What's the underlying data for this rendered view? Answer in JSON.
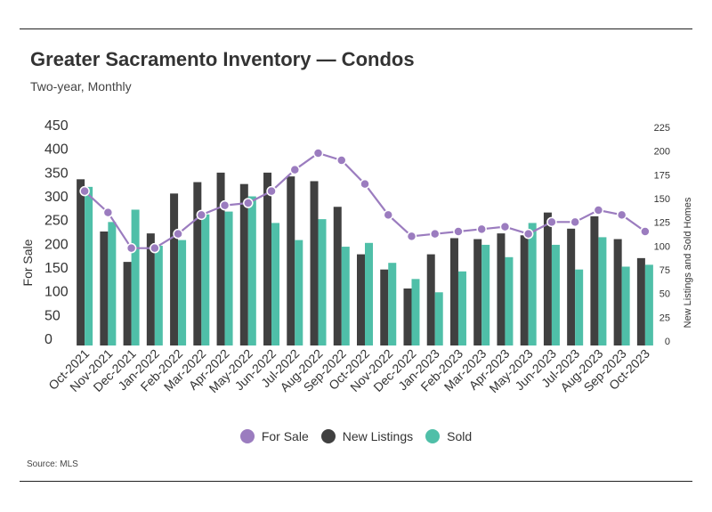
{
  "header": {
    "title": "Greater Sacramento Inventory — Condos",
    "subtitle": "Two-year, Monthly"
  },
  "footer": {
    "source": "Source: MLS"
  },
  "colors": {
    "for_sale": "#9b7cbf",
    "new_listings": "#404040",
    "sold": "#4fbfa8"
  },
  "chart_data": {
    "type": "bar",
    "categories": [
      "Oct-2021",
      "Nov-2021",
      "Dec-2021",
      "Jan-2022",
      "Feb-2022",
      "Mar-2022",
      "Apr-2022",
      "May-2022",
      "Jun-2022",
      "Jul-2022",
      "Aug-2022",
      "Sep-2022",
      "Oct-2022",
      "Nov-2022",
      "Dec-2022",
      "Jan-2023",
      "Feb-2023",
      "Mar-2023",
      "Apr-2023",
      "May-2023",
      "Jun-2023",
      "Jul-2023",
      "Aug-2023",
      "Sep-2023",
      "Oct-2023"
    ],
    "ylabel_left": "For Sale",
    "ylabel_right": "New Listings and Sold Homes",
    "ylim_left": [
      0,
      450
    ],
    "ylim_right": [
      0,
      225
    ],
    "yticks_left": [
      "0",
      "50",
      "100",
      "150",
      "200",
      "250",
      "300",
      "350",
      "400",
      "450"
    ],
    "yticks_right": [
      "0",
      "25",
      "50",
      "75",
      "100",
      "125",
      "150",
      "175",
      "200",
      "225"
    ],
    "grid": false,
    "legend_position": "bottom",
    "series": [
      {
        "name": "For Sale",
        "type": "line",
        "axis": "left",
        "values": [
          325,
          280,
          205,
          205,
          235,
          275,
          295,
          300,
          325,
          370,
          405,
          390,
          340,
          275,
          230,
          235,
          240,
          245,
          250,
          235,
          260,
          260,
          285,
          275,
          240
        ]
      },
      {
        "name": "New Listings",
        "type": "bar",
        "axis": "right",
        "values": [
          175,
          120,
          88,
          118,
          160,
          172,
          182,
          170,
          182,
          178,
          173,
          146,
          96,
          80,
          60,
          96,
          113,
          112,
          118,
          116,
          140,
          123,
          136,
          112,
          92
        ]
      },
      {
        "name": "Sold",
        "type": "bar",
        "axis": "right",
        "values": [
          167,
          130,
          143,
          105,
          111,
          138,
          141,
          157,
          129,
          111,
          133,
          104,
          108,
          87,
          70,
          56,
          78,
          106,
          93,
          129,
          106,
          80,
          114,
          83,
          85
        ]
      }
    ]
  }
}
